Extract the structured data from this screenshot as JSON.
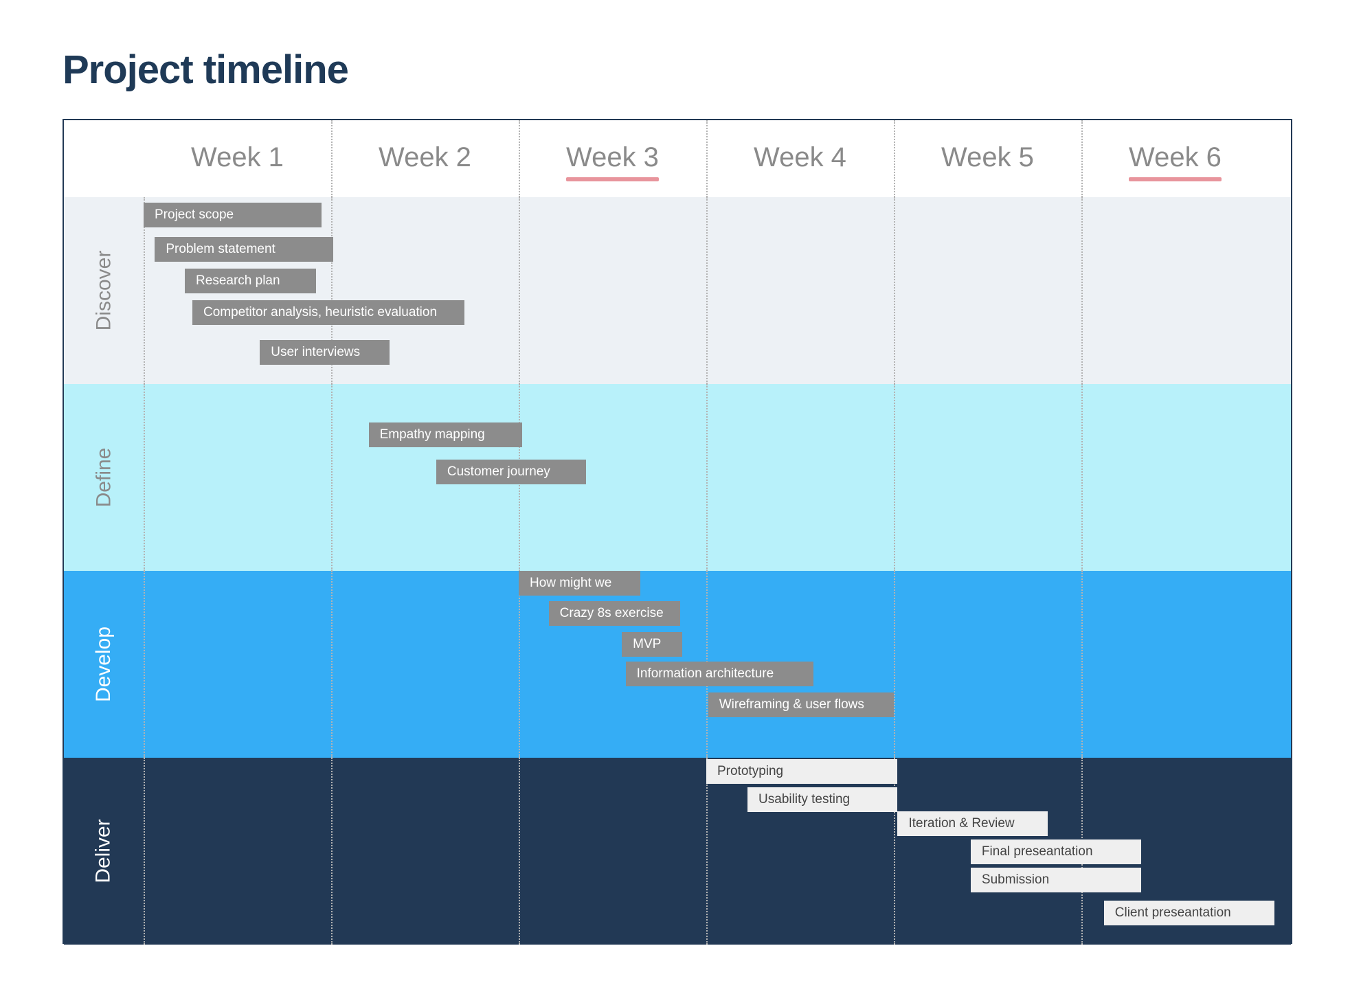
{
  "title": "Project timeline",
  "colors": {
    "title": "#1f3a57",
    "border": "#223955",
    "week_text": "#8a8a8a",
    "week_underline": "#e8949c",
    "grid_line": "#b3b3b3"
  },
  "chart_data": {
    "type": "gantt",
    "x_unit": "week",
    "xlim": [
      0,
      6
    ],
    "weeks": [
      {
        "label": "Week 1",
        "underlined": false
      },
      {
        "label": "Week 2",
        "underlined": false
      },
      {
        "label": "Week 3",
        "underlined": true
      },
      {
        "label": "Week 4",
        "underlined": false
      },
      {
        "label": "Week 5",
        "underlined": false
      },
      {
        "label": "Week 6",
        "underlined": true
      }
    ],
    "phases": [
      {
        "name": "Discover",
        "band_color": "#edf1f5",
        "label_color": "#8a8a8a",
        "task_bg": "#8c8c8c",
        "task_fg": "#ffffff"
      },
      {
        "name": "Define",
        "band_color": "#b8f1fa",
        "label_color": "#8a8a8a",
        "task_bg": "#8c8c8c",
        "task_fg": "#ffffff"
      },
      {
        "name": "Develop",
        "band_color": "#35adf5",
        "label_color": "#ffffff",
        "task_bg": "#8c8c8c",
        "task_fg": "#ffffff"
      },
      {
        "name": "Deliver",
        "band_color": "#223955",
        "label_color": "#ffffff",
        "task_bg": "#efefef",
        "task_fg": "#444444"
      }
    ],
    "tasks": [
      {
        "phase": 0,
        "label": "Project scope",
        "start": 0.0,
        "end": 0.95
      },
      {
        "phase": 0,
        "label": "Problem statement",
        "start": 0.06,
        "end": 1.01
      },
      {
        "phase": 0,
        "label": "Research plan",
        "start": 0.22,
        "end": 0.92
      },
      {
        "phase": 0,
        "label": "Competitor analysis, heuristic evaluation",
        "start": 0.26,
        "end": 1.71
      },
      {
        "phase": 0,
        "label": "User interviews",
        "start": 0.62,
        "end": 1.31
      },
      {
        "phase": 1,
        "label": "Empathy mapping",
        "start": 1.2,
        "end": 2.02
      },
      {
        "phase": 1,
        "label": "Customer journey",
        "start": 1.56,
        "end": 2.36
      },
      {
        "phase": 2,
        "label": "How might we",
        "start": 2.0,
        "end": 2.65
      },
      {
        "phase": 2,
        "label": "Crazy 8s exercise",
        "start": 2.16,
        "end": 2.86
      },
      {
        "phase": 2,
        "label": "MVP",
        "start": 2.55,
        "end": 2.87
      },
      {
        "phase": 2,
        "label": "Information architecture",
        "start": 2.57,
        "end": 3.57
      },
      {
        "phase": 2,
        "label": "Wireframing & user flows",
        "start": 3.01,
        "end": 4.0
      },
      {
        "phase": 3,
        "label": "Prototyping",
        "start": 3.0,
        "end": 4.02
      },
      {
        "phase": 3,
        "label": "Usability testing",
        "start": 3.22,
        "end": 4.02
      },
      {
        "phase": 3,
        "label": "Iteration & Review",
        "start": 4.02,
        "end": 4.82
      },
      {
        "phase": 3,
        "label": "Final preseantation",
        "start": 4.41,
        "end": 5.32
      },
      {
        "phase": 3,
        "label": "Submission",
        "start": 4.41,
        "end": 5.32
      },
      {
        "phase": 3,
        "label": "Client preseantation",
        "start": 5.12,
        "end": 6.03
      }
    ]
  }
}
